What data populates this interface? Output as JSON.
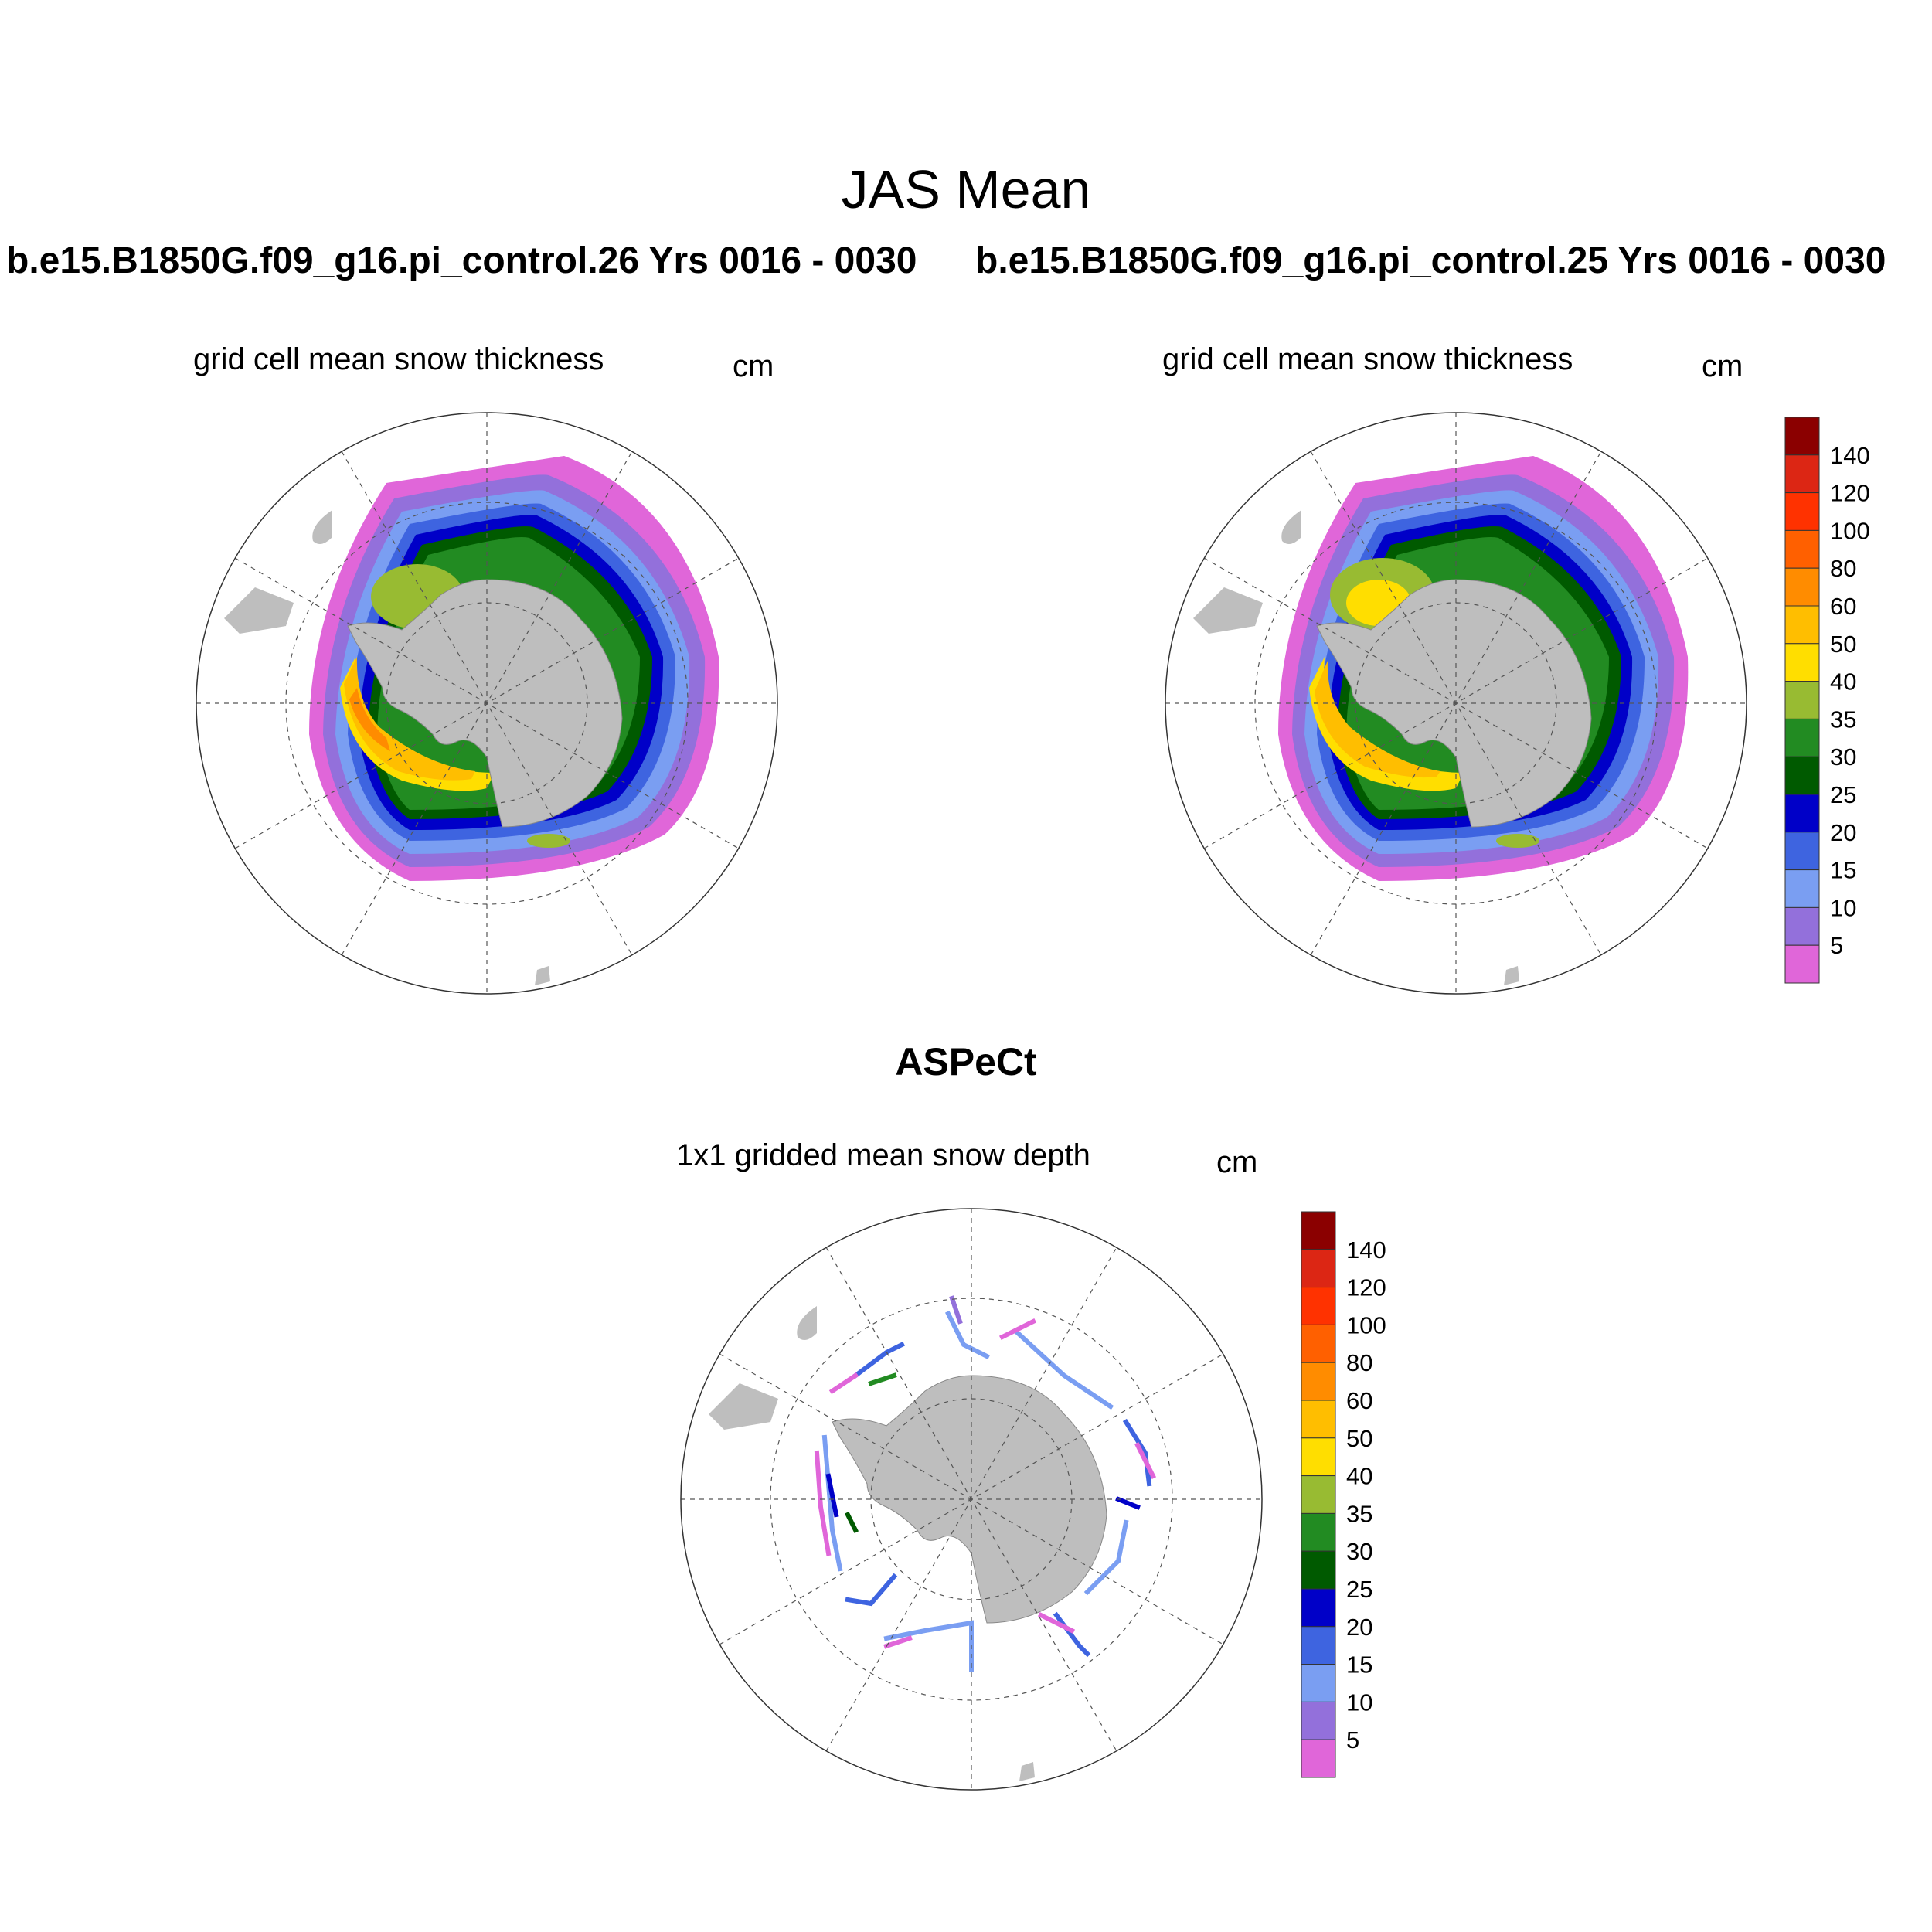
{
  "title": "JAS Mean",
  "runs": [
    {
      "label": "b.e15.B1850G.f09_g16.pi_control.26  Yrs 0016 - 0030"
    },
    {
      "label": "b.e15.B1850G.f09_g16.pi_control.25  Yrs 0016 - 0030"
    }
  ],
  "panels": [
    {
      "label": "grid cell mean snow thickness",
      "unit": "cm"
    },
    {
      "label": "grid cell mean snow thickness",
      "unit": "cm"
    },
    {
      "label": "1x1 gridded mean snow depth",
      "unit": "cm"
    }
  ],
  "obs_title": "ASPeCt",
  "colorbar": {
    "labels": [
      "5",
      "10",
      "15",
      "20",
      "25",
      "30",
      "35",
      "40",
      "50",
      "60",
      "80",
      "100",
      "120",
      "140"
    ],
    "colors": [
      "#e066d9",
      "#9370db",
      "#7a9ef2",
      "#3e64e0",
      "#0000c8",
      "#005a00",
      "#228b22",
      "#98bb32",
      "#ffde00",
      "#ffbe00",
      "#ff8c00",
      "#ff6000",
      "#ff3200",
      "#dc2614",
      "#8b0000"
    ]
  },
  "map": {
    "land_color": "#bebebe",
    "projection": "south polar stereographic",
    "legend_placement": "right"
  }
}
